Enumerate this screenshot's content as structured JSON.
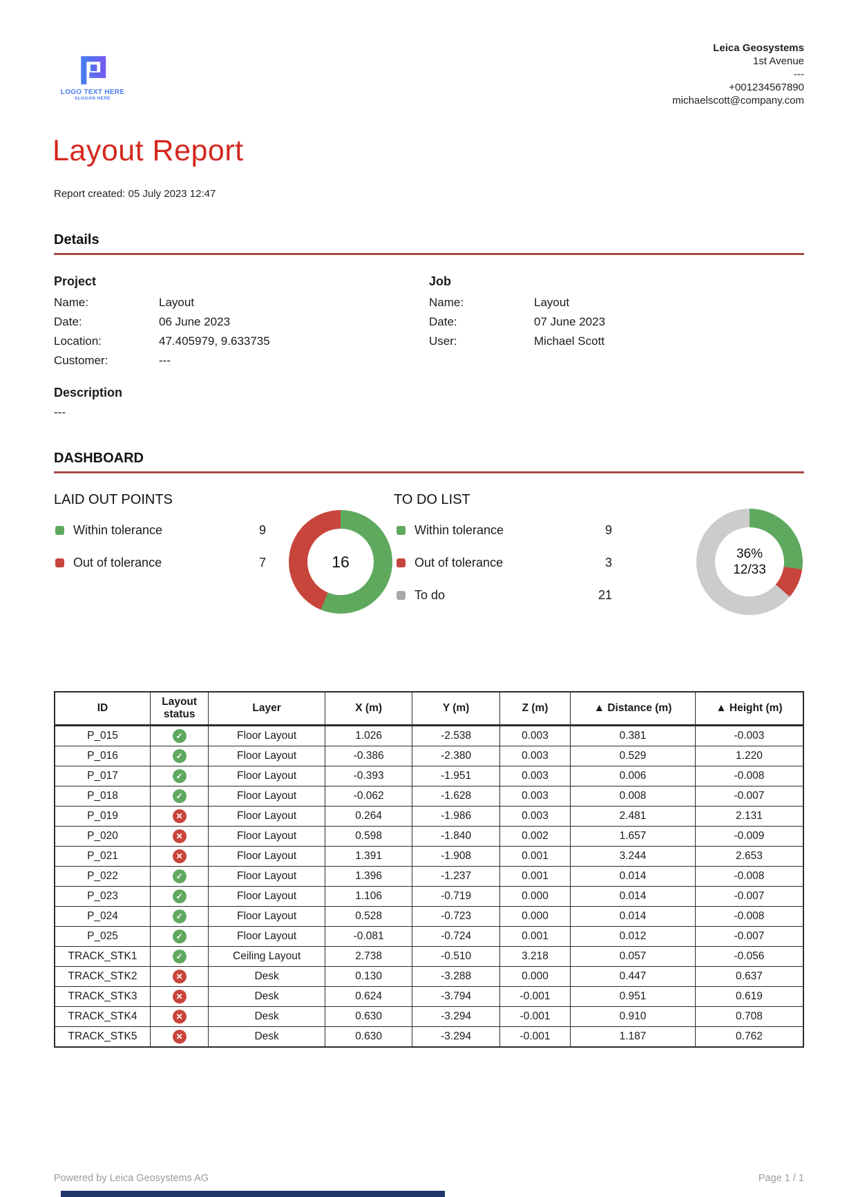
{
  "header": {
    "logo": {
      "title": "LOGO TEXT HERE",
      "slogan": "SLOGAN HERE",
      "color": "#4a7cf0"
    },
    "contact": {
      "company": "Leica Geosystems",
      "address": "1st Avenue",
      "separator": "---",
      "phone": "+001234567890",
      "email": "michaelscott@company.com"
    }
  },
  "title": "Layout Report",
  "created_line": "Report created: 05 July 2023 12:47",
  "details": {
    "heading": "Details",
    "project": {
      "heading": "Project",
      "name_label": "Name:",
      "name_value": "Layout",
      "date_label": "Date:",
      "date_value": "06 June 2023",
      "location_label": "Location:",
      "location_value": "47.405979, 9.633735",
      "customer_label": "Customer:",
      "customer_value": "---"
    },
    "job": {
      "heading": "Job",
      "name_label": "Name:",
      "name_value": "Layout",
      "date_label": "Date:",
      "date_value": "07 June 2023",
      "user_label": "User:",
      "user_value": "Michael Scott"
    },
    "description": {
      "heading": "Description",
      "value": "---"
    }
  },
  "dashboard": {
    "heading": "DASHBOARD",
    "laid_out_points": {
      "title": "LAID OUT POINTS",
      "legend": [
        {
          "label": "Within tolerance",
          "count": "9"
        },
        {
          "label": "Out of tolerance",
          "count": "7"
        }
      ],
      "donut": {
        "total": 16,
        "center": "16",
        "segments": [
          {
            "name": "Within tolerance",
            "value": 9,
            "color": "#5fa95f"
          },
          {
            "name": "Out of tolerance",
            "value": 7,
            "color": "#c8453c"
          }
        ]
      }
    },
    "todo_list": {
      "title": "TO DO LIST",
      "legend": [
        {
          "label": "Within tolerance",
          "count": "9"
        },
        {
          "label": "Out of tolerance",
          "count": "3"
        },
        {
          "label": "To do",
          "count": "21"
        }
      ],
      "donut": {
        "total": 33,
        "center_line1": "36%",
        "center_line2": "12/33",
        "segments": [
          {
            "name": "Within tolerance",
            "value": 9,
            "color": "#5fa95f"
          },
          {
            "name": "Out of tolerance",
            "value": 3,
            "color": "#c8453c"
          },
          {
            "name": "To do",
            "value": 21,
            "color": "#cccccc"
          }
        ]
      }
    }
  },
  "chart_data": [
    {
      "type": "pie",
      "title": "LAID OUT POINTS",
      "labels": [
        "Within tolerance",
        "Out of tolerance"
      ],
      "values": [
        9,
        7
      ],
      "colors": [
        "#5fa95f",
        "#c8453c"
      ],
      "center_label": "16",
      "legend_position": "left"
    },
    {
      "type": "pie",
      "title": "TO DO LIST",
      "labels": [
        "Within tolerance",
        "Out of tolerance",
        "To do"
      ],
      "values": [
        9,
        3,
        21
      ],
      "colors": [
        "#5fa95f",
        "#c8453c",
        "#cccccc"
      ],
      "center_label": "36% 12/33",
      "legend_position": "left"
    }
  ],
  "table": {
    "columns": [
      "ID",
      "Layout status",
      "Layer",
      "X (m)",
      "Y (m)",
      "Z (m)",
      "▲ Distance (m)",
      "▲ Height (m)"
    ],
    "rows": [
      {
        "id": "P_015",
        "status": "ok",
        "layer": "Floor Layout",
        "x": "1.026",
        "y": "-2.538",
        "z": "0.003",
        "distance": "0.381",
        "height": "-0.003"
      },
      {
        "id": "P_016",
        "status": "ok",
        "layer": "Floor Layout",
        "x": "-0.386",
        "y": "-2.380",
        "z": "0.003",
        "distance": "0.529",
        "height": "1.220"
      },
      {
        "id": "P_017",
        "status": "ok",
        "layer": "Floor Layout",
        "x": "-0.393",
        "y": "-1.951",
        "z": "0.003",
        "distance": "0.006",
        "height": "-0.008"
      },
      {
        "id": "P_018",
        "status": "ok",
        "layer": "Floor Layout",
        "x": "-0.062",
        "y": "-1.628",
        "z": "0.003",
        "distance": "0.008",
        "height": "-0.007"
      },
      {
        "id": "P_019",
        "status": "fail",
        "layer": "Floor Layout",
        "x": "0.264",
        "y": "-1.986",
        "z": "0.003",
        "distance": "2.481",
        "height": "2.131"
      },
      {
        "id": "P_020",
        "status": "fail",
        "layer": "Floor Layout",
        "x": "0.598",
        "y": "-1.840",
        "z": "0.002",
        "distance": "1.657",
        "height": "-0.009"
      },
      {
        "id": "P_021",
        "status": "fail",
        "layer": "Floor Layout",
        "x": "1.391",
        "y": "-1.908",
        "z": "0.001",
        "distance": "3.244",
        "height": "2.653"
      },
      {
        "id": "P_022",
        "status": "ok",
        "layer": "Floor Layout",
        "x": "1.396",
        "y": "-1.237",
        "z": "0.001",
        "distance": "0.014",
        "height": "-0.008"
      },
      {
        "id": "P_023",
        "status": "ok",
        "layer": "Floor Layout",
        "x": "1.106",
        "y": "-0.719",
        "z": "0.000",
        "distance": "0.014",
        "height": "-0.007"
      },
      {
        "id": "P_024",
        "status": "ok",
        "layer": "Floor Layout",
        "x": "0.528",
        "y": "-0.723",
        "z": "0.000",
        "distance": "0.014",
        "height": "-0.008"
      },
      {
        "id": "P_025",
        "status": "ok",
        "layer": "Floor Layout",
        "x": "-0.081",
        "y": "-0.724",
        "z": "0.001",
        "distance": "0.012",
        "height": "-0.007"
      },
      {
        "id": "TRACK_STK1",
        "status": "ok",
        "layer": "Ceiling Layout",
        "x": "2.738",
        "y": "-0.510",
        "z": "3.218",
        "distance": "0.057",
        "height": "-0.056"
      },
      {
        "id": "TRACK_STK2",
        "status": "fail",
        "layer": "Desk",
        "x": "0.130",
        "y": "-3.288",
        "z": "0.000",
        "distance": "0.447",
        "height": "0.637"
      },
      {
        "id": "TRACK_STK3",
        "status": "fail",
        "layer": "Desk",
        "x": "0.624",
        "y": "-3.794",
        "z": "-0.001",
        "distance": "0.951",
        "height": "0.619"
      },
      {
        "id": "TRACK_STK4",
        "status": "fail",
        "layer": "Desk",
        "x": "0.630",
        "y": "-3.294",
        "z": "-0.001",
        "distance": "0.910",
        "height": "0.708"
      },
      {
        "id": "TRACK_STK5",
        "status": "fail",
        "layer": "Desk",
        "x": "0.630",
        "y": "-3.294",
        "z": "-0.001",
        "distance": "1.187",
        "height": "0.762"
      }
    ]
  },
  "footer": {
    "left": "Powered by Leica Geosystems AG",
    "right": "Page 1 / 1"
  }
}
